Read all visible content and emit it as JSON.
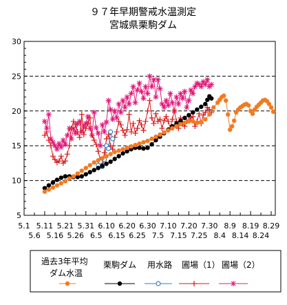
{
  "chart_data": {
    "type": "line",
    "title": "９７年早期警戒水温測定",
    "subtitle": "宮城県栗駒ダム",
    "xlabel": "",
    "ylabel": "",
    "ylim": [
      5,
      30
    ],
    "yticks": [
      5,
      10,
      15,
      20,
      25,
      30
    ],
    "ygrid": [
      10,
      15,
      20,
      25
    ],
    "xlim": [
      0,
      122
    ],
    "x_unit": "day number counted from 5.1 (5.1 = 0)",
    "xticks_row1": [
      {
        "x": 0,
        "label": "5.1"
      },
      {
        "x": 10,
        "label": "5.11"
      },
      {
        "x": 20,
        "label": "5.21"
      },
      {
        "x": 30,
        "label": "5.31"
      },
      {
        "x": 40,
        "label": "6.10"
      },
      {
        "x": 50,
        "label": "6.20"
      },
      {
        "x": 60,
        "label": "6.30"
      },
      {
        "x": 70,
        "label": "7.10"
      },
      {
        "x": 80,
        "label": "7.20"
      },
      {
        "x": 90,
        "label": "7.30"
      },
      {
        "x": 100,
        "label": "8.9"
      },
      {
        "x": 110,
        "label": "8.19"
      },
      {
        "x": 120,
        "label": "8.29"
      }
    ],
    "xticks_row2": [
      {
        "x": 5,
        "label": "5.6"
      },
      {
        "x": 15,
        "label": "5.16"
      },
      {
        "x": 25,
        "label": "5.26"
      },
      {
        "x": 35,
        "label": "6.5"
      },
      {
        "x": 45,
        "label": "6.15"
      },
      {
        "x": 55,
        "label": "6.25"
      },
      {
        "x": 65,
        "label": "7.5"
      },
      {
        "x": 75,
        "label": "7.15"
      },
      {
        "x": 85,
        "label": "7.25"
      },
      {
        "x": 95,
        "label": "8.4"
      },
      {
        "x": 105,
        "label": "8.14"
      },
      {
        "x": 115,
        "label": "8.24"
      }
    ],
    "legend_position": "bottom",
    "series": [
      {
        "name": "過去3年平均ダム水温",
        "color": "#f47a20",
        "marker": "dot",
        "x": [
          10,
          12,
          14,
          16,
          18,
          20,
          22,
          24,
          26,
          28,
          30,
          32,
          34,
          36,
          38,
          40,
          42,
          44,
          46,
          48,
          50,
          52,
          54,
          56,
          58,
          60,
          62,
          64,
          66,
          68,
          70,
          72,
          74,
          76,
          78,
          80,
          82,
          84,
          86,
          88,
          90,
          92,
          94,
          95,
          96,
          97,
          98,
          99,
          100,
          101,
          102,
          103,
          104,
          105,
          106,
          107,
          108,
          109,
          110,
          111,
          112,
          113,
          114,
          115,
          116,
          117,
          118,
          119,
          120,
          121
        ],
        "y": [
          8.4,
          8.7,
          9.0,
          9.3,
          9.6,
          9.9,
          10.3,
          10.6,
          11.0,
          11.4,
          11.8,
          12.2,
          12.6,
          12.9,
          13.2,
          13.5,
          13.8,
          14.1,
          14.3,
          14.5,
          14.7,
          14.9,
          15.1,
          15.3,
          15.5,
          15.7,
          16.0,
          16.3,
          16.6,
          16.9,
          17.2,
          17.5,
          17.8,
          18.1,
          18.3,
          18.5,
          18.5,
          18.3,
          18.4,
          18.8,
          19.5,
          20.5,
          21.2,
          21.6,
          22.0,
          22.2,
          21.5,
          19.5,
          17.3,
          17.8,
          18.6,
          19.8,
          20.2,
          20.5,
          20.7,
          20.9,
          21.0,
          20.8,
          20.0,
          19.6,
          20.2,
          20.6,
          20.9,
          21.2,
          21.5,
          21.6,
          21.4,
          21.0,
          20.5,
          19.9
        ]
      },
      {
        "name": "栗駒ダム",
        "color": "#000000",
        "marker": "dot",
        "x": [
          10,
          12,
          14,
          16,
          18,
          20,
          22,
          24,
          26,
          28,
          30,
          32,
          34,
          36,
          38,
          40,
          42,
          44,
          46,
          48,
          50,
          52,
          54,
          56,
          58,
          60,
          62,
          64,
          66,
          68,
          70,
          72,
          74,
          76,
          78,
          80,
          82,
          84,
          86,
          88,
          89,
          90,
          91
        ],
        "y": [
          8.9,
          9.3,
          9.7,
          10.1,
          10.4,
          10.6,
          10.6,
          10.5,
          10.5,
          10.6,
          10.9,
          11.2,
          11.5,
          11.8,
          12.1,
          12.4,
          12.7,
          13.1,
          13.5,
          13.9,
          14.2,
          14.5,
          14.7,
          14.7,
          14.6,
          14.7,
          15.2,
          15.8,
          16.3,
          16.8,
          17.3,
          17.8,
          18.2,
          18.6,
          19.0,
          19.4,
          19.8,
          20.2,
          20.6,
          21.0,
          21.6,
          22.1,
          21.8
        ]
      },
      {
        "name": "用水路",
        "color": "#3a7fc0",
        "marker": "circle",
        "x": [
          36,
          37,
          38,
          39,
          40,
          41,
          42,
          43
        ],
        "y": [
          12.2,
          12.7,
          12.0,
          13.0,
          15.0,
          14.6,
          17.0,
          16.0
        ]
      },
      {
        "name": "圃場（1）",
        "color": "#d7191c",
        "marker": "plus",
        "x": [
          10,
          11,
          12,
          13,
          14,
          15,
          16,
          17,
          18,
          19,
          20,
          21,
          22,
          23,
          24,
          25,
          26,
          27,
          28,
          29,
          30,
          31,
          32,
          33,
          34,
          35,
          36,
          37,
          38,
          39,
          40,
          41,
          42,
          43,
          44,
          45,
          46,
          47,
          48,
          49,
          50,
          51,
          52,
          53,
          54,
          55,
          56,
          57,
          58,
          59,
          60,
          61,
          62,
          63,
          64,
          65,
          66,
          67,
          68,
          69,
          70,
          71,
          72,
          73,
          74,
          75,
          76,
          77,
          78,
          79,
          80,
          81,
          82,
          83,
          84,
          85,
          86,
          87,
          88,
          89,
          90,
          91
        ],
        "y": [
          16.5,
          17.0,
          15.8,
          15.0,
          13.5,
          13.0,
          12.6,
          12.8,
          13.5,
          12.5,
          12.8,
          13.8,
          15.0,
          17.5,
          18.5,
          18.0,
          17.0,
          16.2,
          19.5,
          16.6,
          17.5,
          18.2,
          19.0,
          16.5,
          15.8,
          15.2,
          14.2,
          13.0,
          12.5,
          14.0,
          16.0,
          16.6,
          15.0,
          14.5,
          16.2,
          17.0,
          18.5,
          18.0,
          17.2,
          16.5,
          17.3,
          19.5,
          17.0,
          18.2,
          16.8,
          17.5,
          18.6,
          18.0,
          17.2,
          18.5,
          20.0,
          21.5,
          19.0,
          18.2,
          19.6,
          18.5,
          18.8,
          17.5,
          18.6,
          19.2,
          18.5,
          17.6,
          18.8,
          20.0,
          18.5,
          17.5,
          19.0,
          18.2,
          17.8,
          18.5,
          18.6,
          19.0,
          19.2,
          17.8,
          18.5,
          19.6,
          18.2,
          19.4,
          19.8,
          20.5,
          20.2,
          19.8
        ]
      },
      {
        "name": "圃場（2）",
        "color": "#e0187a",
        "marker": "star",
        "x": [
          10,
          11,
          12,
          13,
          14,
          15,
          16,
          17,
          18,
          19,
          20,
          21,
          22,
          23,
          24,
          25,
          26,
          27,
          28,
          29,
          30,
          31,
          32,
          33,
          34,
          35,
          36,
          37,
          38,
          39,
          40,
          41,
          42,
          43,
          44,
          45,
          46,
          47,
          48,
          49,
          50,
          51,
          52,
          53,
          54,
          55,
          56,
          57,
          58,
          59,
          60,
          61,
          62,
          63,
          64,
          65,
          66,
          67,
          68,
          69,
          70,
          71,
          72,
          73,
          74,
          75,
          76,
          77,
          78,
          79,
          80,
          81,
          82,
          83,
          84,
          85,
          86,
          87,
          88,
          89,
          90,
          91
        ],
        "y": [
          18.5,
          17.5,
          19.5,
          16.0,
          15.5,
          15.0,
          14.5,
          15.3,
          14.8,
          15.8,
          15.2,
          16.5,
          17.5,
          16.0,
          17.5,
          16.8,
          18.2,
          18.5,
          17.0,
          17.8,
          18.2,
          19.2,
          17.5,
          16.5,
          19.8,
          17.6,
          16.8,
          15.0,
          18.0,
          17.0,
          18.4,
          21.5,
          20.2,
          18.8,
          20.0,
          19.0,
          21.0,
          19.8,
          21.5,
          20.5,
          22.0,
          21.0,
          22.5,
          23.5,
          21.2,
          23.0,
          24.0,
          22.8,
          21.8,
          23.5,
          22.5,
          25.0,
          23.5,
          24.5,
          22.0,
          24.5,
          23.2,
          21.0,
          20.5,
          21.5,
          20.8,
          22.5,
          21.2,
          20.0,
          22.0,
          21.0,
          22.5,
          21.8,
          22.8,
          20.5,
          21.5,
          23.0,
          22.5,
          23.5,
          24.0,
          23.8,
          23.5,
          24.2,
          23.8,
          24.5,
          23.5,
          23.8
        ]
      }
    ]
  }
}
